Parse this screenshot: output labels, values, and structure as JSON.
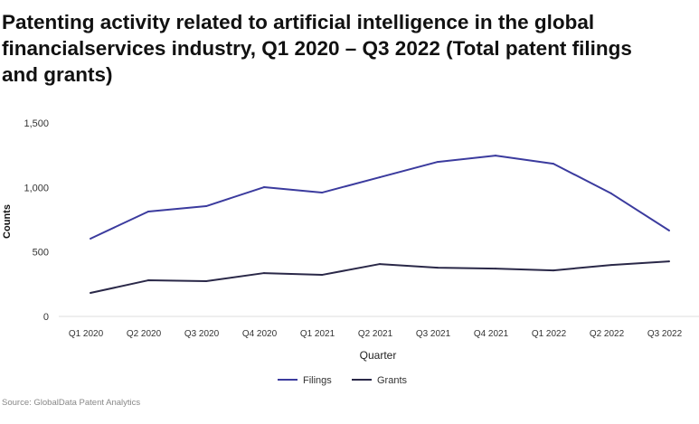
{
  "chart_data": {
    "type": "line",
    "title": "Patenting activity related to artificial intelligence in the global financialservices industry, Q1 2020 – Q3 2022 (Total patent filings and grants)",
    "xlabel": "Quarter",
    "ylabel": "Counts",
    "categories": [
      "Q1 2020",
      "Q2 2020",
      "Q3 2020",
      "Q4 2020",
      "Q1 2021",
      "Q2 2021",
      "Q3 2021",
      "Q4 2021",
      "Q1 2022",
      "Q2 2022",
      "Q3 2022"
    ],
    "ylim": [
      0,
      1500
    ],
    "yticks": [
      0,
      500,
      1000,
      1500
    ],
    "ytick_labels": [
      "0",
      "500",
      "1,000",
      "1,500"
    ],
    "grid": false,
    "legend_position": "bottom",
    "series": [
      {
        "name": "Filings",
        "color": "#3b3b9e",
        "values": [
          603,
          813,
          855,
          1002,
          960,
          1079,
          1198,
          1247,
          1184,
          953,
          666
        ]
      },
      {
        "name": "Grants",
        "color": "#2a2848",
        "values": [
          182,
          280,
          273,
          336,
          322,
          406,
          378,
          371,
          357,
          399,
          427
        ]
      }
    ]
  },
  "source": "Source: GlobalData Patent Analytics"
}
